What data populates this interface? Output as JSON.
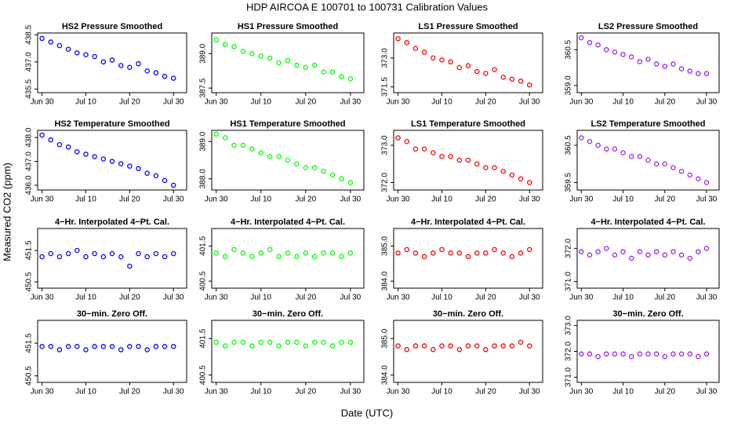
{
  "title": "HDP   AIRCOA E   100701 to 100731   Calibration Values",
  "ylabel": "Measured CO2 (ppm)",
  "xlabel": "Date (UTC)",
  "chart_data": [
    {
      "type": "scatter",
      "title": "HS2 Pressure Smoothed",
      "color": "#0000ff",
      "x": [
        "Jun 30",
        "Jul 2",
        "Jul 4",
        "Jul 6",
        "Jul 8",
        "Jul 10",
        "Jul 12",
        "Jul 14",
        "Jul 16",
        "Jul 18",
        "Jul 20",
        "Jul 22",
        "Jul 24",
        "Jul 26",
        "Jul 28",
        "Jul 30"
      ],
      "values": [
        438.3,
        438.1,
        437.9,
        437.7,
        437.5,
        437.4,
        437.3,
        437.0,
        437.1,
        436.8,
        436.7,
        436.9,
        436.5,
        436.4,
        436.2,
        436.1
      ],
      "xlim": [
        "Jun 29",
        "Aug 2"
      ],
      "xticks": [
        "Jun 30",
        "Jul 10",
        "Jul 20",
        "Jul 30"
      ],
      "ylim": [
        435.3,
        438.6
      ],
      "yticks": [
        {
          "value": 435.5,
          "label": "435.5"
        },
        {
          "value": 437,
          "label": "437.0"
        },
        {
          "value": 438.5,
          "label": "438.5"
        }
      ]
    },
    {
      "type": "scatter",
      "title": "HS1 Pressure Smoothed",
      "color": "#00ff00",
      "x": [
        "Jun 30",
        "Jul 2",
        "Jul 4",
        "Jul 6",
        "Jul 8",
        "Jul 10",
        "Jul 12",
        "Jul 14",
        "Jul 16",
        "Jul 18",
        "Jul 20",
        "Jul 22",
        "Jul 24",
        "Jul 26",
        "Jul 28",
        "Jul 30"
      ],
      "values": [
        389.6,
        389.4,
        389.3,
        389.1,
        389.0,
        388.9,
        388.8,
        388.6,
        388.7,
        388.5,
        388.4,
        388.5,
        388.2,
        388.2,
        388.0,
        387.9
      ],
      "xlim": [
        "Jun 29",
        "Aug 2"
      ],
      "xticks": [
        "Jun 30",
        "Jul 10",
        "Jul 20",
        "Jul 30"
      ],
      "ylim": [
        387.3,
        389.9
      ],
      "yticks": [
        {
          "value": 387.5,
          "label": "387.5"
        },
        {
          "value": 389,
          "label": "389.0"
        }
      ]
    },
    {
      "type": "scatter",
      "title": "LS1 Pressure Smoothed",
      "color": "#ff0000",
      "x": [
        "Jun 30",
        "Jul 2",
        "Jul 4",
        "Jul 6",
        "Jul 8",
        "Jul 10",
        "Jul 12",
        "Jul 14",
        "Jul 16",
        "Jul 18",
        "Jul 20",
        "Jul 22",
        "Jul 24",
        "Jul 26",
        "Jul 28",
        "Jul 30"
      ],
      "values": [
        374.0,
        373.8,
        373.5,
        373.3,
        373.0,
        372.9,
        372.8,
        372.5,
        372.6,
        372.3,
        372.2,
        372.4,
        372.0,
        371.9,
        371.8,
        371.6
      ],
      "xlim": [
        "Jun 29",
        "Aug 2"
      ],
      "xticks": [
        "Jun 30",
        "Jul 10",
        "Jul 20",
        "Jul 30"
      ],
      "ylim": [
        371.2,
        374.3
      ],
      "yticks": [
        {
          "value": 371.5,
          "label": "371.5"
        },
        {
          "value": 373,
          "label": "373.0"
        }
      ]
    },
    {
      "type": "scatter",
      "title": "LS2 Pressure Smoothed",
      "color": "#a020f0",
      "x": [
        "Jun 30",
        "Jul 2",
        "Jul 4",
        "Jul 6",
        "Jul 8",
        "Jul 10",
        "Jul 12",
        "Jul 14",
        "Jul 16",
        "Jul 18",
        "Jul 20",
        "Jul 22",
        "Jul 24",
        "Jul 26",
        "Jul 28",
        "Jul 30"
      ],
      "values": [
        361.0,
        360.8,
        360.7,
        360.5,
        360.4,
        360.3,
        360.2,
        360.0,
        360.1,
        359.9,
        359.8,
        359.9,
        359.7,
        359.6,
        359.5,
        359.5
      ],
      "xlim": [
        "Jun 29",
        "Aug 2"
      ],
      "xticks": [
        "Jun 30",
        "Jul 10",
        "Jul 20",
        "Jul 30"
      ],
      "ylim": [
        358.7,
        361.2
      ],
      "yticks": [
        {
          "value": 359,
          "label": "359.0"
        },
        {
          "value": 360.5,
          "label": "360.5"
        }
      ]
    },
    {
      "type": "scatter",
      "title": "HS2 Temperature Smoothed",
      "color": "#0000ff",
      "x": [
        "Jun 30",
        "Jul 2",
        "Jul 4",
        "Jul 6",
        "Jul 8",
        "Jul 10",
        "Jul 12",
        "Jul 14",
        "Jul 16",
        "Jul 18",
        "Jul 20",
        "Jul 22",
        "Jul 24",
        "Jul 26",
        "Jul 28",
        "Jul 30"
      ],
      "values": [
        438.1,
        437.9,
        437.7,
        437.6,
        437.4,
        437.3,
        437.2,
        437.1,
        437.0,
        436.9,
        436.8,
        436.7,
        436.5,
        436.4,
        436.2,
        436.0
      ],
      "xlim": [
        "Jun 29",
        "Aug 2"
      ],
      "xticks": [
        "Jun 30",
        "Jul 10",
        "Jul 20",
        "Jul 30"
      ],
      "ylim": [
        435.8,
        438.3
      ],
      "yticks": [
        {
          "value": 436,
          "label": "436.0"
        },
        {
          "value": 437,
          "label": "437.0"
        },
        {
          "value": 438,
          "label": "438.0"
        }
      ]
    },
    {
      "type": "scatter",
      "title": "HS1 Temperature Smoothed",
      "color": "#00ff00",
      "x": [
        "Jun 30",
        "Jul 2",
        "Jul 4",
        "Jul 6",
        "Jul 8",
        "Jul 10",
        "Jul 12",
        "Jul 14",
        "Jul 16",
        "Jul 18",
        "Jul 20",
        "Jul 22",
        "Jul 24",
        "Jul 26",
        "Jul 28",
        "Jul 30"
      ],
      "values": [
        389.2,
        389.1,
        388.9,
        388.9,
        388.8,
        388.7,
        388.6,
        388.6,
        388.5,
        388.4,
        388.3,
        388.3,
        388.2,
        388.1,
        388.0,
        387.9
      ],
      "xlim": [
        "Jun 29",
        "Aug 2"
      ],
      "xticks": [
        "Jun 30",
        "Jul 10",
        "Jul 20",
        "Jul 30"
      ],
      "ylim": [
        387.7,
        389.3
      ],
      "yticks": [
        {
          "value": 388,
          "label": "388.0"
        },
        {
          "value": 389,
          "label": "389.0"
        }
      ]
    },
    {
      "type": "scatter",
      "title": "LS1 Temperature Smoothed",
      "color": "#ff0000",
      "x": [
        "Jun 30",
        "Jul 2",
        "Jul 4",
        "Jul 6",
        "Jul 8",
        "Jul 10",
        "Jul 12",
        "Jul 14",
        "Jul 16",
        "Jul 18",
        "Jul 20",
        "Jul 22",
        "Jul 24",
        "Jul 26",
        "Jul 28",
        "Jul 30"
      ],
      "values": [
        373.2,
        373.1,
        372.9,
        372.9,
        372.8,
        372.7,
        372.7,
        372.6,
        372.6,
        372.5,
        372.4,
        372.4,
        372.3,
        372.2,
        372.1,
        372.0
      ],
      "xlim": [
        "Jun 29",
        "Aug 2"
      ],
      "xticks": [
        "Jun 30",
        "Jul 10",
        "Jul 20",
        "Jul 30"
      ],
      "ylim": [
        371.8,
        373.4
      ],
      "yticks": [
        {
          "value": 372,
          "label": "372.0"
        },
        {
          "value": 373,
          "label": "373.0"
        }
      ]
    },
    {
      "type": "scatter",
      "title": "LS2 Temperature Smoothed",
      "color": "#a020f0",
      "x": [
        "Jun 30",
        "Jul 2",
        "Jul 4",
        "Jul 6",
        "Jul 8",
        "Jul 10",
        "Jul 12",
        "Jul 14",
        "Jul 16",
        "Jul 18",
        "Jul 20",
        "Jul 22",
        "Jul 24",
        "Jul 26",
        "Jul 28",
        "Jul 30"
      ],
      "values": [
        360.7,
        360.6,
        360.5,
        360.4,
        360.4,
        360.3,
        360.2,
        360.2,
        360.1,
        360.0,
        360.0,
        359.9,
        359.8,
        359.7,
        359.6,
        359.5
      ],
      "xlim": [
        "Jun 29",
        "Aug 2"
      ],
      "xticks": [
        "Jun 30",
        "Jul 10",
        "Jul 20",
        "Jul 30"
      ],
      "ylim": [
        359.3,
        360.9
      ],
      "yticks": [
        {
          "value": 359.5,
          "label": "359.5"
        },
        {
          "value": 360.5,
          "label": "360.5"
        }
      ]
    },
    {
      "type": "scatter",
      "title": "4−Hr. Interpolated 4−Pt. Cal.",
      "color": "#0000ff",
      "x": [
        "Jun 30",
        "Jul 2",
        "Jul 4",
        "Jul 6",
        "Jul 8",
        "Jul 10",
        "Jul 12",
        "Jul 14",
        "Jul 16",
        "Jul 18",
        "Jul 20",
        "Jul 22",
        "Jul 24",
        "Jul 26",
        "Jul 28",
        "Jul 30"
      ],
      "values": [
        451.3,
        451.4,
        451.3,
        451.4,
        451.5,
        451.3,
        451.4,
        451.3,
        451.4,
        451.3,
        451.0,
        451.4,
        451.3,
        451.4,
        451.3,
        451.4
      ],
      "xlim": [
        "Jun 29",
        "Aug 2"
      ],
      "xticks": [
        "Jun 30",
        "Jul 10",
        "Jul 20",
        "Jul 30"
      ],
      "ylim": [
        450.3,
        452.2
      ],
      "yticks": [
        {
          "value": 450.5,
          "label": "450.5"
        },
        {
          "value": 451.5,
          "label": "451.5"
        }
      ]
    },
    {
      "type": "scatter",
      "title": "4−Hr. Interpolated 4−Pt. Cal.",
      "color": "#00ff00",
      "x": [
        "Jun 30",
        "Jul 2",
        "Jul 4",
        "Jul 6",
        "Jul 8",
        "Jul 10",
        "Jul 12",
        "Jul 14",
        "Jul 16",
        "Jul 18",
        "Jul 20",
        "Jul 22",
        "Jul 24",
        "Jul 26",
        "Jul 28",
        "Jul 30"
      ],
      "values": [
        401.3,
        401.2,
        401.4,
        401.3,
        401.2,
        401.3,
        401.4,
        401.2,
        401.3,
        401.2,
        401.3,
        401.2,
        401.3,
        401.3,
        401.2,
        401.3
      ],
      "xlim": [
        "Jun 29",
        "Aug 2"
      ],
      "xticks": [
        "Jun 30",
        "Jul 10",
        "Jul 20",
        "Jul 30"
      ],
      "ylim": [
        400.3,
        402.0
      ],
      "yticks": [
        {
          "value": 400.5,
          "label": "400.5"
        },
        {
          "value": 401.5,
          "label": "401.5"
        }
      ]
    },
    {
      "type": "scatter",
      "title": "4−Hr. Interpolated 4−Pt. Cal.",
      "color": "#ff0000",
      "x": [
        "Jun 30",
        "Jul 2",
        "Jul 4",
        "Jul 6",
        "Jul 8",
        "Jul 10",
        "Jul 12",
        "Jul 14",
        "Jul 16",
        "Jul 18",
        "Jul 20",
        "Jul 22",
        "Jul 24",
        "Jul 26",
        "Jul 28",
        "Jul 30"
      ],
      "values": [
        384.8,
        384.9,
        384.8,
        384.7,
        384.8,
        384.9,
        384.8,
        384.8,
        384.7,
        384.8,
        384.8,
        384.9,
        384.8,
        384.7,
        384.8,
        384.9
      ],
      "xlim": [
        "Jun 29",
        "Aug 2"
      ],
      "xticks": [
        "Jun 30",
        "Jul 10",
        "Jul 20",
        "Jul 30"
      ],
      "ylim": [
        383.8,
        385.5
      ],
      "yticks": [
        {
          "value": 384,
          "label": "384.0"
        },
        {
          "value": 385,
          "label": "385.0"
        }
      ]
    },
    {
      "type": "scatter",
      "title": "4−Hr. Interpolated 4−Pt. Cal.",
      "color": "#a020f0",
      "x": [
        "Jun 30",
        "Jul 2",
        "Jul 4",
        "Jul 6",
        "Jul 8",
        "Jul 10",
        "Jul 12",
        "Jul 14",
        "Jul 16",
        "Jul 18",
        "Jul 20",
        "Jul 22",
        "Jul 24",
        "Jul 26",
        "Jul 28",
        "Jul 30"
      ],
      "values": [
        371.9,
        371.8,
        371.9,
        372.0,
        371.8,
        371.9,
        371.7,
        371.9,
        371.8,
        371.9,
        371.8,
        371.9,
        371.8,
        371.7,
        371.9,
        372.0
      ],
      "xlim": [
        "Jun 29",
        "Aug 2"
      ],
      "xticks": [
        "Jun 30",
        "Jul 10",
        "Jul 20",
        "Jul 30"
      ],
      "ylim": [
        370.8,
        372.6
      ],
      "yticks": [
        {
          "value": 371,
          "label": "371.0"
        },
        {
          "value": 372,
          "label": "372.0"
        }
      ]
    },
    {
      "type": "scatter",
      "title": "30−min. Zero Off.",
      "color": "#0000ff",
      "x": [
        "Jun 30",
        "Jul 2",
        "Jul 4",
        "Jul 6",
        "Jul 8",
        "Jul 10",
        "Jul 12",
        "Jul 14",
        "Jul 16",
        "Jul 18",
        "Jul 20",
        "Jul 22",
        "Jul 24",
        "Jul 26",
        "Jul 28",
        "Jul 30"
      ],
      "values": [
        451.4,
        451.4,
        451.3,
        451.4,
        451.4,
        451.3,
        451.4,
        451.4,
        451.4,
        451.3,
        451.4,
        451.4,
        451.3,
        451.4,
        451.4,
        451.4
      ],
      "xlim": [
        "Jun 29",
        "Aug 2"
      ],
      "xticks": [
        "Jun 30",
        "Jul 10",
        "Jul 20",
        "Jul 30"
      ],
      "ylim": [
        450.3,
        452.2
      ],
      "yticks": [
        {
          "value": 450.5,
          "label": "450.5"
        },
        {
          "value": 451.5,
          "label": "451.5"
        }
      ]
    },
    {
      "type": "scatter",
      "title": "30−min. Zero Off.",
      "color": "#00ff00",
      "x": [
        "Jun 30",
        "Jul 2",
        "Jul 4",
        "Jul 6",
        "Jul 8",
        "Jul 10",
        "Jul 12",
        "Jul 14",
        "Jul 16",
        "Jul 18",
        "Jul 20",
        "Jul 22",
        "Jul 24",
        "Jul 26",
        "Jul 28",
        "Jul 30"
      ],
      "values": [
        401.4,
        401.3,
        401.4,
        401.4,
        401.3,
        401.4,
        401.4,
        401.3,
        401.4,
        401.4,
        401.3,
        401.4,
        401.4,
        401.3,
        401.4,
        401.4
      ],
      "xlim": [
        "Jun 29",
        "Aug 2"
      ],
      "xticks": [
        "Jun 30",
        "Jul 10",
        "Jul 20",
        "Jul 30"
      ],
      "ylim": [
        400.3,
        402.0
      ],
      "yticks": [
        {
          "value": 400.5,
          "label": "400.5"
        },
        {
          "value": 401.5,
          "label": "401.5"
        }
      ]
    },
    {
      "type": "scatter",
      "title": "30−min. Zero Off.",
      "color": "#ff0000",
      "x": [
        "Jun 30",
        "Jul 2",
        "Jul 4",
        "Jul 6",
        "Jul 8",
        "Jul 10",
        "Jul 12",
        "Jul 14",
        "Jul 16",
        "Jul 18",
        "Jul 20",
        "Jul 22",
        "Jul 24",
        "Jul 26",
        "Jul 28",
        "Jul 30"
      ],
      "values": [
        384.8,
        384.7,
        384.8,
        384.8,
        384.7,
        384.8,
        384.8,
        384.7,
        384.8,
        384.8,
        384.7,
        384.8,
        384.8,
        384.8,
        384.9,
        384.8
      ],
      "xlim": [
        "Jun 29",
        "Aug 2"
      ],
      "xticks": [
        "Jun 30",
        "Jul 10",
        "Jul 20",
        "Jul 30"
      ],
      "ylim": [
        383.8,
        385.5
      ],
      "yticks": [
        {
          "value": 384,
          "label": "384.0"
        },
        {
          "value": 385,
          "label": "385.0"
        }
      ]
    },
    {
      "type": "scatter",
      "title": "30−min. Zero Off.",
      "color": "#a020f0",
      "x": [
        "Jun 30",
        "Jul 2",
        "Jul 4",
        "Jul 6",
        "Jul 8",
        "Jul 10",
        "Jul 12",
        "Jul 14",
        "Jul 16",
        "Jul 18",
        "Jul 20",
        "Jul 22",
        "Jul 24",
        "Jul 26",
        "Jul 28",
        "Jul 30"
      ],
      "values": [
        371.9,
        371.9,
        371.8,
        371.9,
        371.9,
        371.9,
        371.8,
        371.9,
        371.9,
        371.9,
        371.8,
        371.9,
        371.9,
        371.9,
        371.8,
        371.9
      ],
      "xlim": [
        "Jun 29",
        "Aug 2"
      ],
      "xticks": [
        "Jun 30",
        "Jul 10",
        "Jul 20",
        "Jul 30"
      ],
      "ylim": [
        370.8,
        373.2
      ],
      "yticks": [
        {
          "value": 371,
          "label": "371.0"
        },
        {
          "value": 372,
          "label": "372.0"
        },
        {
          "value": 373,
          "label": "373.0"
        }
      ]
    }
  ]
}
